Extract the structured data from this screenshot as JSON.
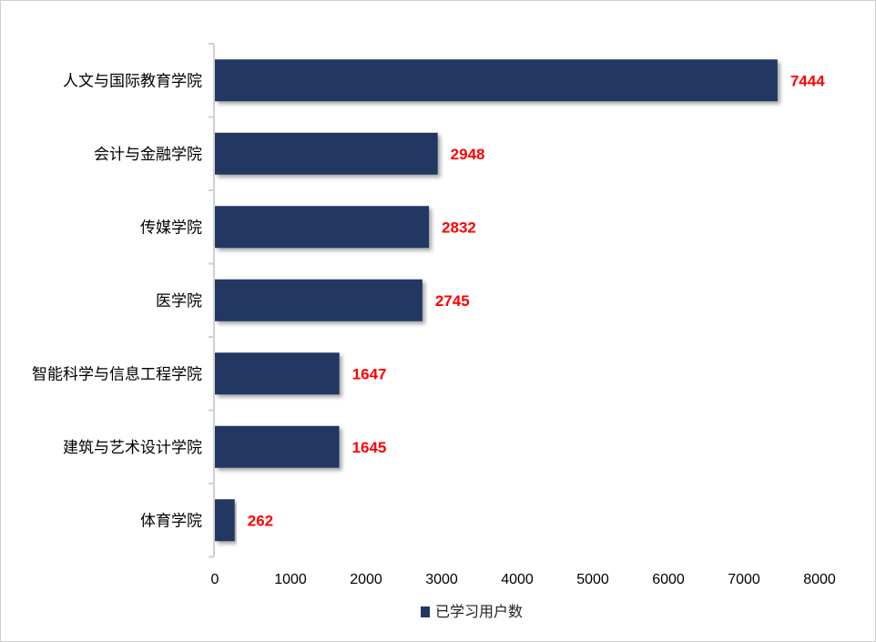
{
  "chart_data": {
    "type": "bar",
    "orientation": "horizontal",
    "categories": [
      "人文与国际教育学院",
      "会计与金融学院",
      "传媒学院",
      "医学院",
      "智能科学与信息工程学院",
      "建筑与艺术设计学院",
      "体育学院"
    ],
    "series": [
      {
        "name": "已学习用户数",
        "values": [
          7444,
          2948,
          2832,
          2745,
          1647,
          1645,
          262
        ]
      }
    ],
    "xlim": [
      0,
      8000
    ],
    "xticks": [
      "0",
      "1000",
      "2000",
      "3000",
      "4000",
      "5000",
      "6000",
      "7000",
      "8000"
    ],
    "grid": false,
    "legend": "bottom",
    "colors": {
      "bar": "#203864",
      "data_label": "#ff0000"
    }
  }
}
